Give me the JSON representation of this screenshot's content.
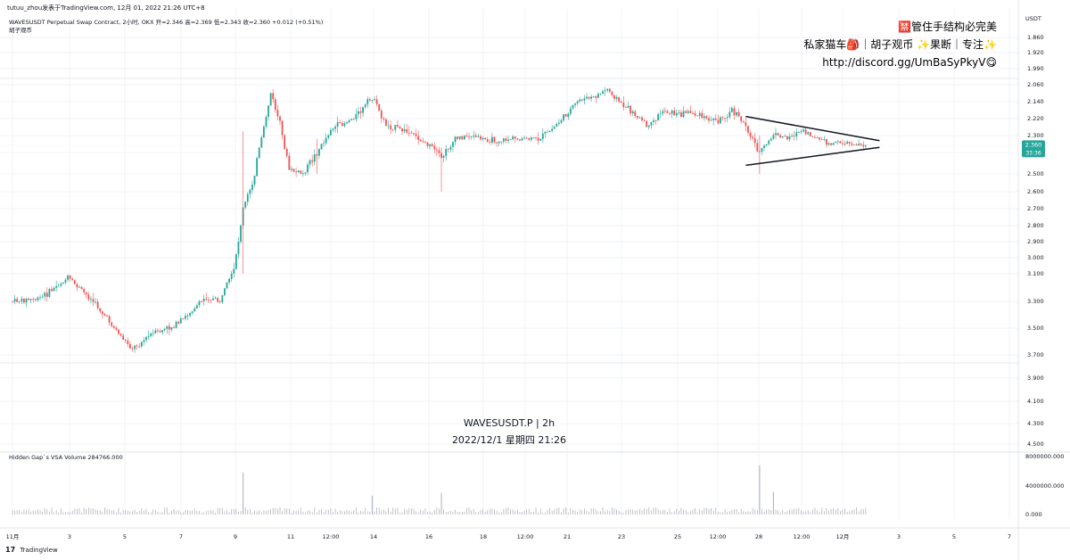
{
  "header": {
    "published_by": "tutuu_zhou发表于TradingView.com, 12月 01, 2022 21:26 UTC+8",
    "symbol_line": "WAVESUSDT Perpetual Swap Contract, 2小时, OKX  开=2.346  高=2.369  低=2.343  收=2.360  +0.012 (+0.51%)",
    "indicator_name": "胡子观币"
  },
  "promo": {
    "line1": "🈲管住手结构必完美",
    "line2": "私家猫车🎒｜胡子观币 ✨果断｜专注✨",
    "line3": "http://discord.gg/UmBaSyPkyV😋"
  },
  "watermark": {
    "title": "WAVESUSDT.P | 2h",
    "datetime": "2022/12/1 星期四 21:26"
  },
  "price_axis": {
    "unit": "USDT",
    "ticks": [
      "1.860",
      "1.920",
      "1.990",
      "2.060",
      "2.140",
      "2.220",
      "2.300",
      "2.400",
      "2.500",
      "2.600",
      "2.700",
      "2.800",
      "2.900",
      "3.000",
      "3.100",
      "3.300",
      "3.500",
      "3.700",
      "3.900",
      "4.100",
      "4.300",
      "4.500"
    ],
    "current_price": "2.360",
    "countdown": "33:36"
  },
  "volume_panel": {
    "label": "Hidden Gap`s VSA Volume  284766.000",
    "ticks": [
      "8000000.000",
      "4000000.000",
      "0.000"
    ]
  },
  "time_axis": {
    "ticks": [
      "11月",
      "3",
      "5",
      "7",
      "9",
      "11",
      "12:00",
      "14",
      "16",
      "18",
      "12:00",
      "21",
      "23",
      "25",
      "12:00",
      "28",
      "12:00",
      "12月",
      "3",
      "5",
      "7"
    ]
  },
  "footer": {
    "brand": "TradingView"
  },
  "colors": {
    "up": "#26a69a",
    "down": "#ef5350",
    "volume": "#b2b5be",
    "grid": "#f0f3fa",
    "line": "#131722"
  },
  "chart_data": {
    "type": "candlestick",
    "symbol": "WAVESUSDT",
    "interval": "2h",
    "y_scale": "inverted",
    "ylim": [
      1.83,
      4.55
    ],
    "close_path": [
      {
        "x": "2022-11-01",
        "y": 3.3
      },
      {
        "x": "2022-11-02",
        "y": 3.28
      },
      {
        "x": "2022-11-03",
        "y": 3.13
      },
      {
        "x": "2022-11-03T12:00",
        "y": 3.22
      },
      {
        "x": "2022-11-04",
        "y": 3.32
      },
      {
        "x": "2022-11-04T12:00",
        "y": 3.45
      },
      {
        "x": "2022-11-05",
        "y": 3.58
      },
      {
        "x": "2022-11-05T08:00",
        "y": 3.65
      },
      {
        "x": "2022-11-06",
        "y": 3.55
      },
      {
        "x": "2022-11-07",
        "y": 3.47
      },
      {
        "x": "2022-11-07T12:00",
        "y": 3.36
      },
      {
        "x": "2022-11-08",
        "y": 3.27
      },
      {
        "x": "2022-11-08T12:00",
        "y": 3.3
      },
      {
        "x": "2022-11-09",
        "y": 3.08
      },
      {
        "x": "2022-11-09T08:00",
        "y": 2.7
      },
      {
        "x": "2022-11-09T16:00",
        "y": 2.55
      },
      {
        "x": "2022-11-10",
        "y": 2.32
      },
      {
        "x": "2022-11-10T08:00",
        "y": 2.1
      },
      {
        "x": "2022-11-10T16:00",
        "y": 2.25
      },
      {
        "x": "2022-11-11",
        "y": 2.48
      },
      {
        "x": "2022-11-11T12:00",
        "y": 2.5
      },
      {
        "x": "2022-11-12",
        "y": 2.4
      },
      {
        "x": "2022-11-12T12:00",
        "y": 2.27
      },
      {
        "x": "2022-11-13",
        "y": 2.24
      },
      {
        "x": "2022-11-13T12:00",
        "y": 2.2
      },
      {
        "x": "2022-11-14",
        "y": 2.12
      },
      {
        "x": "2022-11-14T12:00",
        "y": 2.25
      },
      {
        "x": "2022-11-15",
        "y": 2.27
      },
      {
        "x": "2022-11-15T12:00",
        "y": 2.3
      },
      {
        "x": "2022-11-16",
        "y": 2.35
      },
      {
        "x": "2022-11-16T12:00",
        "y": 2.43
      },
      {
        "x": "2022-11-17",
        "y": 2.32
      },
      {
        "x": "2022-11-17T12:00",
        "y": 2.3
      },
      {
        "x": "2022-11-18",
        "y": 2.32
      },
      {
        "x": "2022-11-18T12:00",
        "y": 2.33
      },
      {
        "x": "2022-11-19",
        "y": 2.32
      },
      {
        "x": "2022-11-19T12:00",
        "y": 2.32
      },
      {
        "x": "2022-11-20",
        "y": 2.32
      },
      {
        "x": "2022-11-20T12:00",
        "y": 2.27
      },
      {
        "x": "2022-11-21",
        "y": 2.2
      },
      {
        "x": "2022-11-21T12:00",
        "y": 2.13
      },
      {
        "x": "2022-11-22",
        "y": 2.12
      },
      {
        "x": "2022-11-22T12:00",
        "y": 2.08
      },
      {
        "x": "2022-11-23",
        "y": 2.15
      },
      {
        "x": "2022-11-23T12:00",
        "y": 2.2
      },
      {
        "x": "2022-11-24",
        "y": 2.26
      },
      {
        "x": "2022-11-24T12:00",
        "y": 2.18
      },
      {
        "x": "2022-11-25",
        "y": 2.2
      },
      {
        "x": "2022-11-25T12:00",
        "y": 2.19
      },
      {
        "x": "2022-11-26",
        "y": 2.22
      },
      {
        "x": "2022-11-26T12:00",
        "y": 2.23
      },
      {
        "x": "2022-11-27",
        "y": 2.18
      },
      {
        "x": "2022-11-27T12:00",
        "y": 2.25
      },
      {
        "x": "2022-11-28",
        "y": 2.4
      },
      {
        "x": "2022-11-28T12:00",
        "y": 2.3
      },
      {
        "x": "2022-11-29",
        "y": 2.31
      },
      {
        "x": "2022-11-29T12:00",
        "y": 2.28
      },
      {
        "x": "2022-11-30",
        "y": 2.31
      },
      {
        "x": "2022-11-30T12:00",
        "y": 2.35
      },
      {
        "x": "2022-12-01",
        "y": 2.34
      },
      {
        "x": "2022-12-01T12:00",
        "y": 2.35
      },
      {
        "x": "2022-12-01T21:26",
        "y": 2.36
      }
    ],
    "triangle": {
      "upper": [
        {
          "x": "2022-11-27T12:00",
          "y": 2.21
        },
        {
          "x": "2022-12-02T08:00",
          "y": 2.33
        }
      ],
      "lower": [
        {
          "x": "2022-11-27T12:00",
          "y": 2.46
        },
        {
          "x": "2022-12-02T08:00",
          "y": 2.37
        }
      ]
    },
    "volume_spikes": [
      {
        "x": "2022-11-09T08:00",
        "y": 5800000
      },
      {
        "x": "2022-11-14",
        "y": 2600000
      },
      {
        "x": "2022-11-16T12:00",
        "y": 3000000
      },
      {
        "x": "2022-11-28",
        "y": 6800000
      },
      {
        "x": "2022-11-28T12:00",
        "y": 3100000
      }
    ]
  }
}
